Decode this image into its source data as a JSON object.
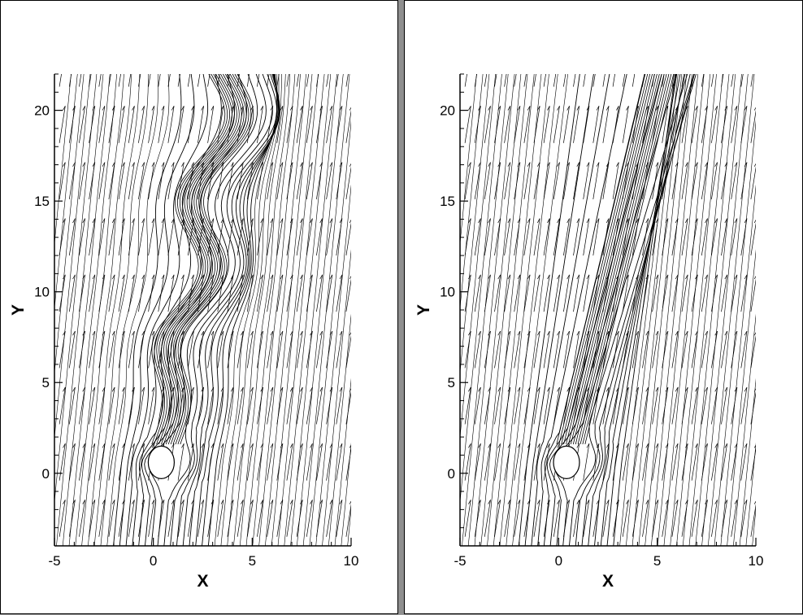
{
  "chart_data": [
    {
      "type": "streamline-vector-field",
      "panel": "left",
      "xlabel": "X",
      "ylabel": "Y",
      "xlim": [
        -5,
        10
      ],
      "ylim": [
        -4,
        22
      ],
      "xticks": [
        -5,
        0,
        5,
        10
      ],
      "yticks": [
        0,
        5,
        10,
        15,
        20
      ],
      "grid": false,
      "obstacle_center": [
        0.4,
        0.6
      ],
      "wake": "oscillating vortex street"
    },
    {
      "type": "streamline-vector-field",
      "panel": "right",
      "xlabel": "X",
      "ylabel": "Y",
      "xlim": [
        -5,
        10
      ],
      "ylim": [
        -4,
        22
      ],
      "xticks": [
        -5,
        0,
        5,
        10
      ],
      "yticks": [
        0,
        5,
        10,
        15,
        20
      ],
      "grid": false,
      "obstacle_center": [
        0.4,
        0.6
      ],
      "wake": "steady straight wake"
    }
  ],
  "colors": {
    "line": "#000000",
    "background": "#ffffff",
    "frame": "#8f8f8f"
  }
}
